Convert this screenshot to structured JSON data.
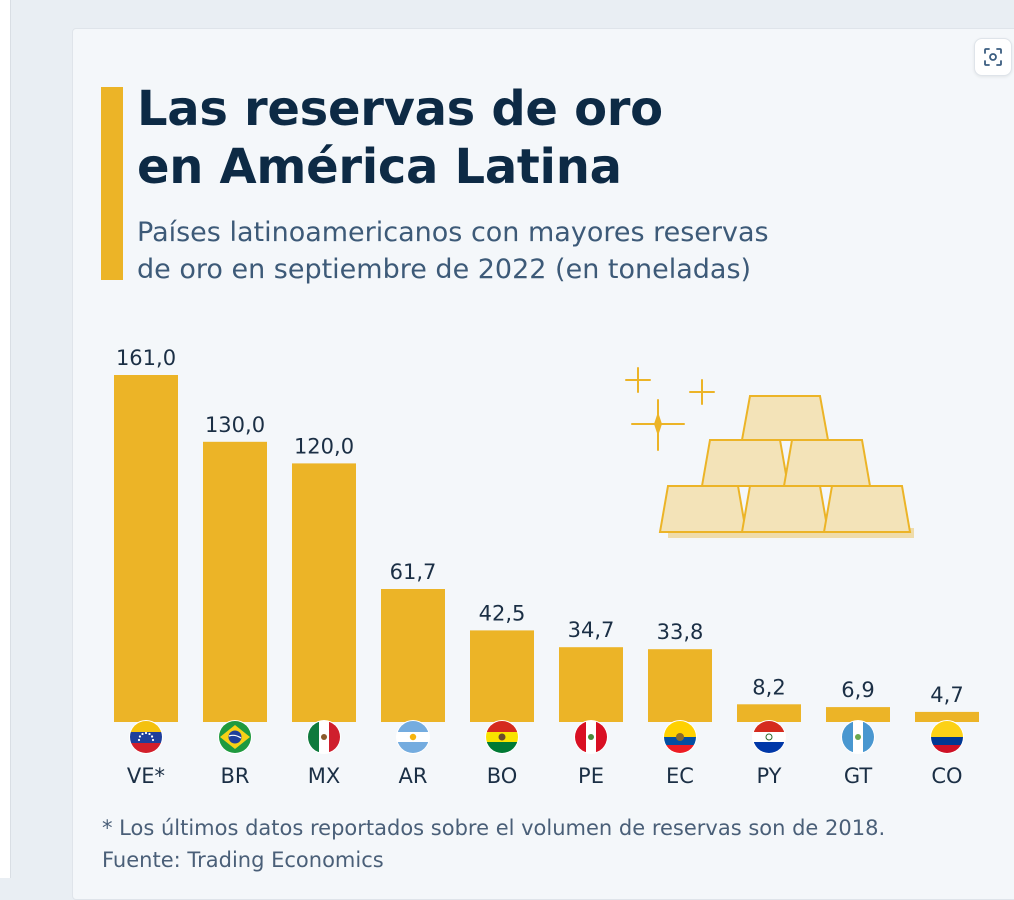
{
  "header": {
    "title_line1": "Las reservas de oro",
    "title_line2": "en América Latina",
    "subtitle_line1": "Países latinoamericanos con mayores reservas",
    "subtitle_line2": "de oro en septiembre de 2022 (en toneladas)"
  },
  "footer": {
    "note": "* Los últimos datos reportados sobre el volumen de reservas son de 2018.",
    "source": "Fuente: Trading Economics"
  },
  "colors": {
    "bar": "#ecb427",
    "accent": "#ecb427",
    "title": "#0d2a45",
    "subtitle": "#3d5a78",
    "label": "#1b2f45"
  },
  "icons": {
    "focus": "focus-frame-icon",
    "illustration": "gold-bars-illustration"
  },
  "chart_data": {
    "type": "bar",
    "title": "Las reservas de oro en América Latina",
    "subtitle": "Países latinoamericanos con mayores reservas de oro en septiembre de 2022 (en toneladas)",
    "categories": [
      "VE*",
      "BR",
      "MX",
      "AR",
      "BO",
      "PE",
      "EC",
      "PY",
      "GT",
      "CO"
    ],
    "values": [
      161.0,
      130.0,
      120.0,
      61.7,
      42.5,
      34.7,
      33.8,
      8.2,
      6.9,
      4.7
    ],
    "value_labels": [
      "161,0",
      "130,0",
      "120,0",
      "61,7",
      "42,5",
      "34,7",
      "33,8",
      "8,2",
      "6,9",
      "4,7"
    ],
    "flags": [
      "flag-venezuela-icon",
      "flag-brazil-icon",
      "flag-mexico-icon",
      "flag-argentina-icon",
      "flag-bolivia-icon",
      "flag-peru-icon",
      "flag-ecuador-icon",
      "flag-paraguay-icon",
      "flag-guatemala-icon",
      "flag-colombia-icon"
    ],
    "xlabel": "",
    "ylabel": "",
    "ylim": [
      0,
      161.0
    ],
    "grid": false,
    "legend": "none"
  }
}
